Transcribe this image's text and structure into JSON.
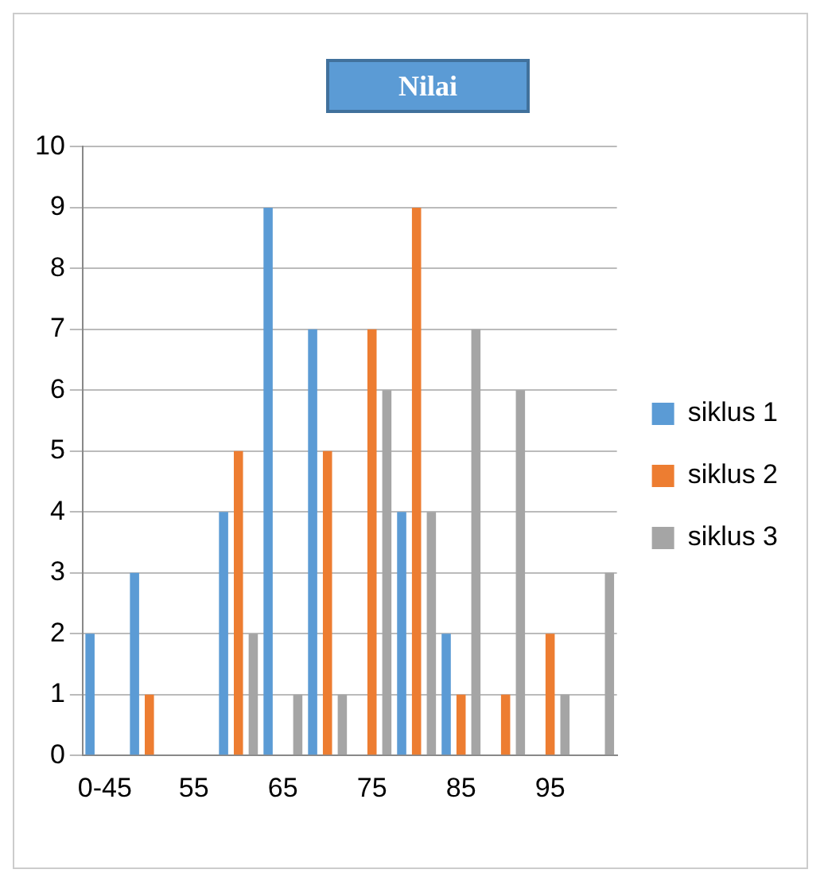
{
  "chart_data": {
    "type": "bar",
    "title": "Nilai",
    "categories": [
      "0-45",
      null,
      "55",
      null,
      "65",
      null,
      "75",
      null,
      "85",
      null,
      "95",
      null
    ],
    "series": [
      {
        "name": "siklus 1",
        "color": "#5b9bd5",
        "values": [
          2,
          3,
          0,
          4,
          9,
          7,
          0,
          4,
          2,
          0,
          0,
          0
        ]
      },
      {
        "name": "siklus 2",
        "color": "#ed7d31",
        "values": [
          0,
          1,
          0,
          5,
          0,
          5,
          7,
          9,
          1,
          1,
          2,
          0
        ]
      },
      {
        "name": "siklus 3",
        "color": "#a5a5a5",
        "values": [
          0,
          0,
          0,
          2,
          1,
          1,
          6,
          4,
          7,
          6,
          1,
          3
        ]
      }
    ],
    "ylim": [
      0,
      10
    ],
    "yticks": [
      0,
      1,
      2,
      3,
      4,
      5,
      6,
      7,
      8,
      9,
      10
    ],
    "grid": "y",
    "legend": "right"
  }
}
